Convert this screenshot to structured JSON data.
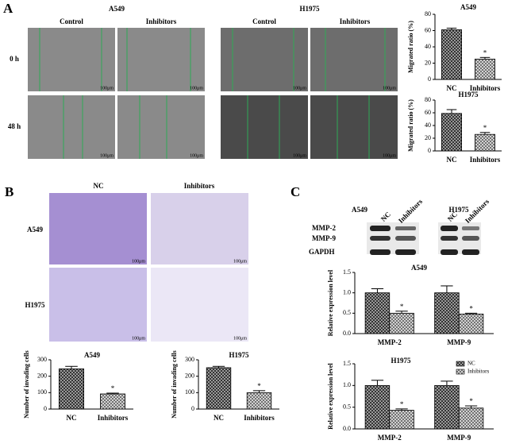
{
  "panels": {
    "A": {
      "letter": "A",
      "groups": [
        {
          "name": "A549",
          "columns": [
            "Control",
            "Inhibitors"
          ]
        },
        {
          "name": "H1975",
          "columns": [
            "Control",
            "Inhibitors"
          ]
        }
      ],
      "rows": [
        "0 h",
        "48 h"
      ]
    },
    "B": {
      "letter": "B",
      "columns": [
        "NC",
        "Inhibitors"
      ],
      "rows": [
        "A549",
        "H1975"
      ]
    },
    "C": {
      "letter": "C",
      "groups": [
        {
          "name": "A549",
          "lanes": [
            "NC",
            "Inhibitors"
          ]
        },
        {
          "name": "H1975",
          "lanes": [
            "NC",
            "Inhibitors"
          ]
        }
      ],
      "proteins": [
        "MMP-2",
        "MMP-9",
        "GAPDH"
      ]
    },
    "scale_bar": "100μm"
  },
  "chart_data": [
    {
      "type": "bar",
      "title": "A549",
      "y_label": "Migrated ratio (%)",
      "categories": [
        "NC",
        "Inhibitors"
      ],
      "values": [
        61,
        25
      ],
      "errors": [
        2,
        2
      ],
      "colors": [
        "#9a9a9a",
        "#e0e0e0"
      ],
      "ylim": [
        0,
        80
      ],
      "yticks": [
        0,
        20,
        40,
        60,
        80
      ],
      "annotations": [
        {
          "text": "*",
          "category": "Inhibitors"
        }
      ]
    },
    {
      "type": "bar",
      "title": "H1975",
      "y_label": "Migrated ratio (%)",
      "categories": [
        "NC",
        "Inhibitors"
      ],
      "values": [
        59,
        26
      ],
      "errors": [
        6,
        3
      ],
      "colors": [
        "#9a9a9a",
        "#e0e0e0"
      ],
      "ylim": [
        0,
        80
      ],
      "yticks": [
        0,
        20,
        40,
        60,
        80
      ],
      "annotations": [
        {
          "text": "*",
          "category": "Inhibitors"
        }
      ]
    },
    {
      "type": "bar",
      "title": "A549",
      "y_label": "Number of invading cells",
      "categories": [
        "NC",
        "Inhibitors"
      ],
      "values": [
        245,
        92
      ],
      "errors": [
        15,
        5
      ],
      "colors": [
        "#9a9a9a",
        "#e0e0e0"
      ],
      "ylim": [
        0,
        300
      ],
      "yticks": [
        0,
        100,
        200,
        300
      ],
      "annotations": [
        {
          "text": "*",
          "category": "Inhibitors"
        }
      ]
    },
    {
      "type": "bar",
      "title": "H1975",
      "y_label": "Number of invading cells",
      "categories": [
        "NC",
        "Inhibitors"
      ],
      "values": [
        252,
        100
      ],
      "errors": [
        8,
        12
      ],
      "colors": [
        "#9a9a9a",
        "#e0e0e0"
      ],
      "ylim": [
        0,
        300
      ],
      "yticks": [
        0,
        100,
        200,
        300
      ],
      "annotations": [
        {
          "text": "*",
          "category": "Inhibitors"
        }
      ]
    },
    {
      "type": "grouped-bar",
      "title": "A549",
      "y_label": "Relative expression level",
      "categories": [
        "MMP-2",
        "MMP-9"
      ],
      "series": [
        {
          "name": "NC",
          "color": "#9a9a9a",
          "values": [
            1.0,
            1.0
          ],
          "errors": [
            0.1,
            0.17
          ]
        },
        {
          "name": "Inhibitors",
          "color": "#e0e0e0",
          "values": [
            0.5,
            0.48
          ],
          "errors": [
            0.05,
            0.02
          ]
        }
      ],
      "ylim": [
        0,
        1.5
      ],
      "yticks": [
        {
          "value": 0,
          "label": "0.0"
        },
        0.5,
        {
          "value": 1,
          "label": "1.0"
        },
        1.5
      ],
      "annotations": [
        {
          "text": "*",
          "category": "MMP-2",
          "series": "Inhibitors"
        },
        {
          "text": "*",
          "category": "MMP-9",
          "series": "Inhibitors"
        }
      ]
    },
    {
      "type": "grouped-bar",
      "title": "H1975",
      "y_label": "Relative expression level",
      "categories": [
        "MMP-2",
        "MMP-9"
      ],
      "series": [
        {
          "name": "NC",
          "color": "#9a9a9a",
          "values": [
            1.0,
            1.0
          ],
          "errors": [
            0.12,
            0.1
          ]
        },
        {
          "name": "Inhibitors",
          "color": "#e0e0e0",
          "values": [
            0.43,
            0.48
          ],
          "errors": [
            0.03,
            0.05
          ]
        }
      ],
      "ylim": [
        0,
        1.5
      ],
      "yticks": [
        {
          "value": 0,
          "label": "0.0"
        },
        0.5,
        {
          "value": 1,
          "label": "1.0"
        },
        1.5
      ],
      "legend": "top-right",
      "annotations": [
        {
          "text": "*",
          "category": "MMP-2",
          "series": "Inhibitors"
        },
        {
          "text": "*",
          "category": "MMP-9",
          "series": "Inhibitors"
        }
      ]
    }
  ]
}
